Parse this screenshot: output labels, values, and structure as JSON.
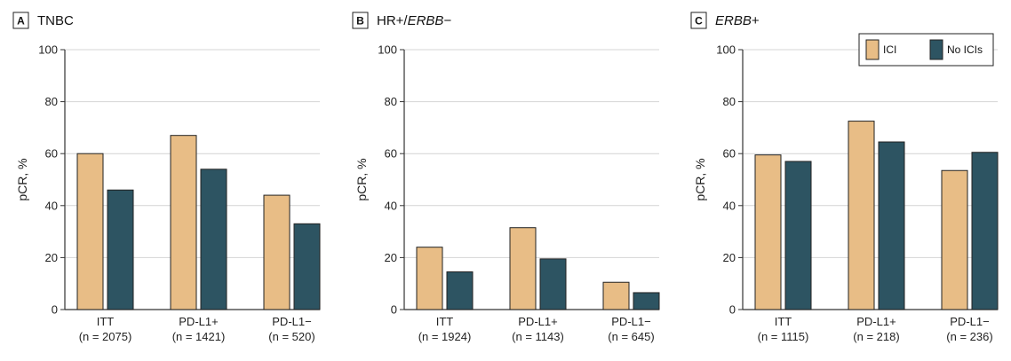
{
  "chart_data": [
    {
      "type": "bar",
      "panel_letter": "A",
      "title": "TNBC",
      "title_italic": false,
      "categories": [
        "ITT",
        "PD-L1+",
        "PD-L1−"
      ],
      "category_n": [
        "(n = 2075)",
        "(n = 1421)",
        "(n = 520)"
      ],
      "ylabel": "pCR, %",
      "ylim": [
        0,
        100
      ],
      "yticks": [
        0,
        20,
        40,
        60,
        80,
        100
      ],
      "grid": true,
      "series": [
        {
          "name": "ICI",
          "values": [
            60,
            67,
            44
          ]
        },
        {
          "name": "No ICIs",
          "values": [
            46,
            54,
            33
          ]
        }
      ]
    },
    {
      "type": "bar",
      "panel_letter": "B",
      "title_prefix": "HR+/",
      "title_italic_part": "ERBB",
      "title_suffix": "−",
      "categories": [
        "ITT",
        "PD-L1+",
        "PD-L1−"
      ],
      "category_n": [
        "(n = 1924)",
        "(n = 1143)",
        "(n = 645)"
      ],
      "ylabel": "pCR, %",
      "ylim": [
        0,
        100
      ],
      "yticks": [
        0,
        20,
        40,
        60,
        80,
        100
      ],
      "grid": true,
      "series": [
        {
          "name": "ICI",
          "values": [
            24,
            31.5,
            10.5
          ]
        },
        {
          "name": "No ICIs",
          "values": [
            14.5,
            19.5,
            6.5
          ]
        }
      ]
    },
    {
      "type": "bar",
      "panel_letter": "C",
      "title_italic_part": "ERBB",
      "title_suffix": "+",
      "categories": [
        "ITT",
        "PD-L1+",
        "PD-L1−"
      ],
      "category_n": [
        "(n = 1115)",
        "(n = 218)",
        "(n = 236)"
      ],
      "ylabel": "pCR, %",
      "ylim": [
        0,
        100
      ],
      "yticks": [
        0,
        20,
        40,
        60,
        80,
        100
      ],
      "grid": true,
      "legend": {
        "placement": "top-right",
        "entries": [
          "ICI",
          "No ICIs"
        ]
      },
      "series": [
        {
          "name": "ICI",
          "values": [
            59.5,
            72.5,
            53.5
          ]
        },
        {
          "name": "No ICIs",
          "values": [
            57,
            64.5,
            60.5
          ]
        }
      ]
    }
  ],
  "colors": {
    "ici": "#e8bd86",
    "no_ici": "#2d5462",
    "bar_stroke": "#222222",
    "grid": "#d4d4d4",
    "axis": "#333333"
  }
}
